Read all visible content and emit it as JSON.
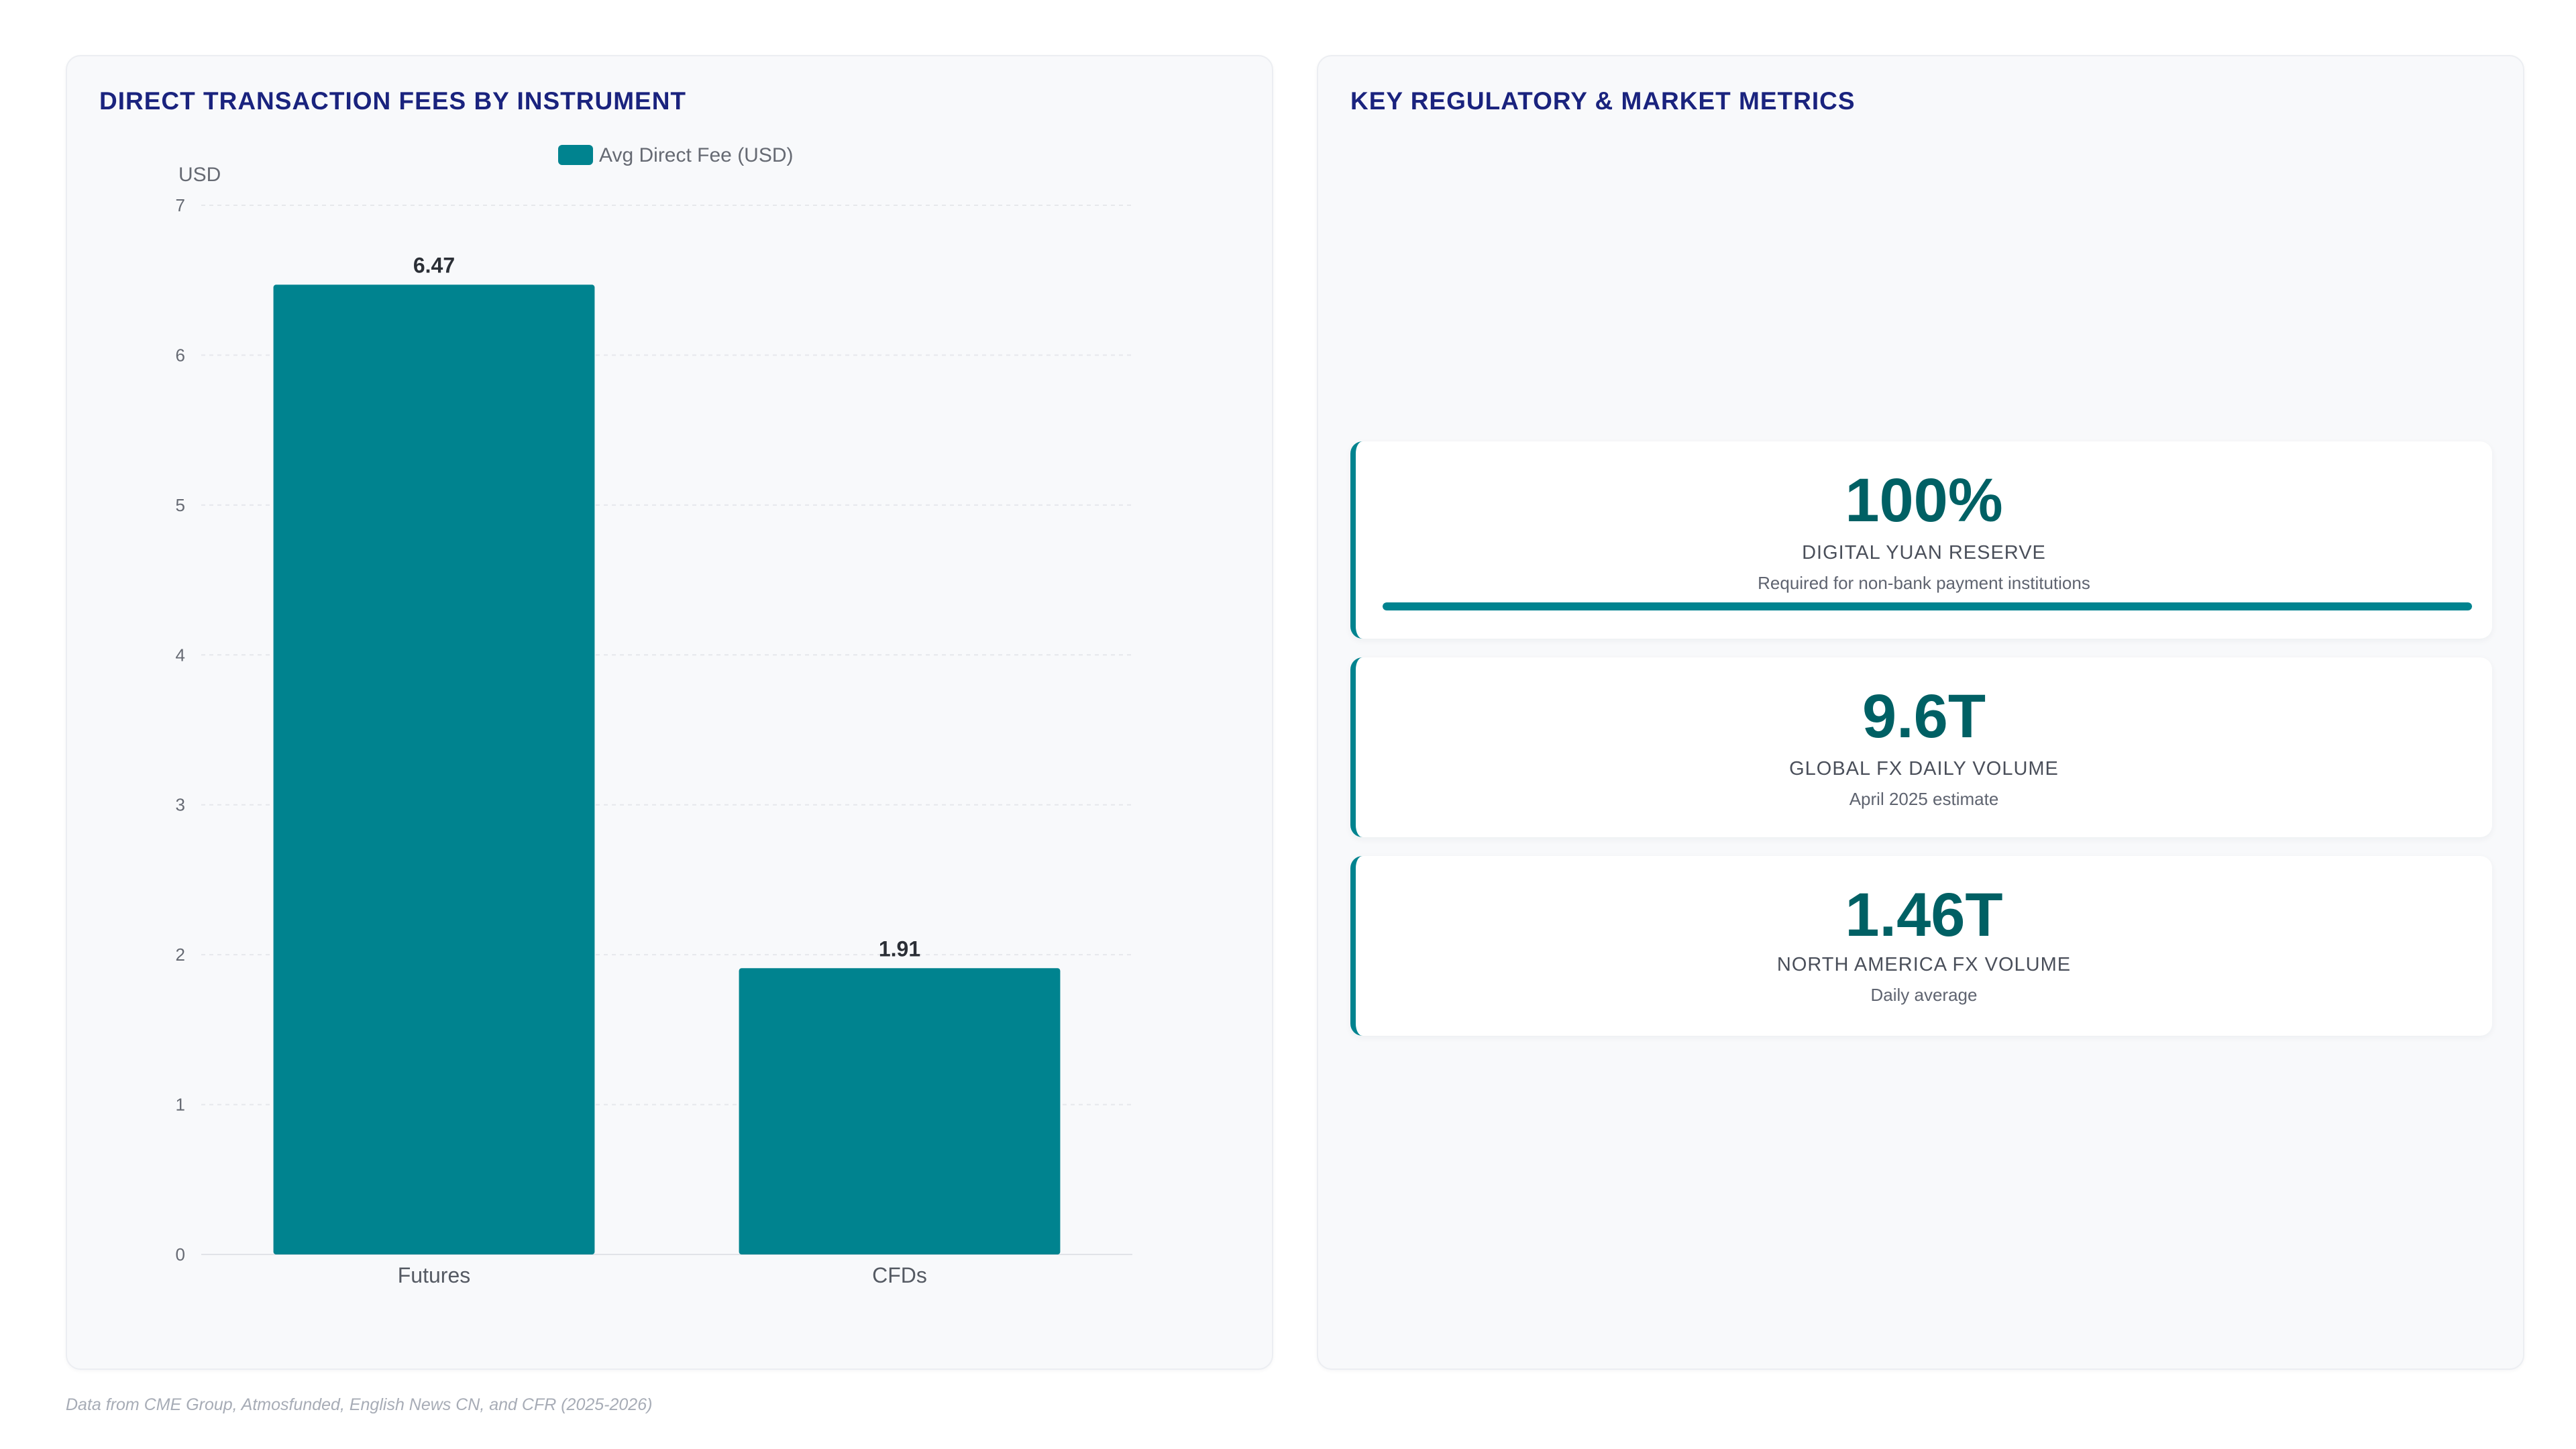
{
  "left_panel": {
    "title": "DIRECT TRANSACTION FEES BY INSTRUMENT"
  },
  "right_panel": {
    "title": "KEY REGULATORY & MARKET METRICS",
    "kpis": [
      {
        "value": "100%",
        "label": "DIGITAL YUAN RESERVE",
        "sub": "Required for non-bank payment institutions",
        "progress": 1.0
      },
      {
        "value": "9.6T",
        "label": "GLOBAL FX DAILY VOLUME",
        "sub": "April 2025 estimate"
      },
      {
        "value": "1.46T",
        "label": "NORTH AMERICA FX VOLUME",
        "sub": "Daily average"
      }
    ]
  },
  "footer": "Data from CME Group, Atmosfunded, English News CN, and CFR (2025-2026)",
  "colors": {
    "bar": "#00838f",
    "title": "#1a237e",
    "kpi_value": "#006064"
  },
  "chart_data": {
    "type": "bar",
    "categories": [
      "Futures",
      "CFDs"
    ],
    "series": [
      {
        "name": "Avg Direct Fee (USD)",
        "values": [
          6.47,
          1.91
        ]
      }
    ],
    "value_labels": [
      "6.47",
      "1.91"
    ],
    "ylabel": "USD",
    "ylim": [
      0,
      7
    ],
    "yticks": [
      0,
      1,
      2,
      3,
      4,
      5,
      6,
      7
    ],
    "grid": true,
    "legend": "top-center"
  }
}
